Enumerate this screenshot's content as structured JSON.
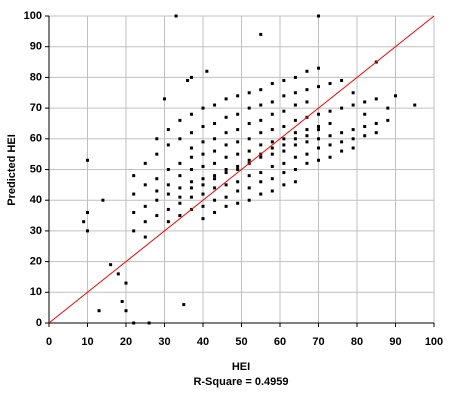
{
  "chart_data": {
    "type": "scatter",
    "x_label": "HEI",
    "y_label": "Predicted HEI",
    "annotation": "R-Square =  0.4959",
    "color": "#000000",
    "reference_line_color": "#ff0000",
    "grid": true,
    "xlim": [
      0,
      100
    ],
    "ylim": [
      0,
      100
    ],
    "xticks": [
      0,
      10,
      20,
      30,
      40,
      50,
      60,
      70,
      80,
      90,
      100
    ],
    "yticks": [
      0,
      10,
      20,
      30,
      40,
      50,
      60,
      70,
      80,
      90,
      100
    ],
    "x": [
      33,
      70,
      10,
      9,
      10,
      14,
      16,
      18,
      20,
      19,
      20,
      22,
      26,
      13,
      35,
      36,
      37,
      41,
      55,
      90,
      95,
      85,
      30,
      10,
      22,
      22,
      22,
      22,
      25,
      25,
      25,
      25,
      25,
      28,
      28,
      28,
      28,
      28,
      28,
      31,
      31,
      31,
      31,
      31,
      31,
      31,
      34,
      34,
      34,
      34,
      34,
      34,
      34,
      34,
      37,
      37,
      37,
      37,
      37,
      37,
      37,
      37,
      37,
      40,
      40,
      40,
      40,
      40,
      40,
      40,
      40,
      40,
      40,
      43,
      43,
      43,
      43,
      43,
      43,
      43,
      43,
      43,
      43,
      46,
      46,
      46,
      46,
      46,
      46,
      46,
      46,
      46,
      46,
      49,
      49,
      49,
      49,
      49,
      49,
      49,
      49,
      49,
      49,
      52,
      52,
      52,
      52,
      52,
      52,
      52,
      52,
      52,
      52,
      55,
      55,
      55,
      55,
      55,
      55,
      55,
      55,
      55,
      55,
      58,
      58,
      58,
      58,
      58,
      58,
      58,
      58,
      58,
      58,
      61,
      61,
      61,
      61,
      61,
      61,
      61,
      61,
      61,
      61,
      64,
      64,
      64,
      64,
      64,
      64,
      64,
      64,
      64,
      64,
      67,
      67,
      67,
      67,
      67,
      67,
      67,
      67,
      67,
      70,
      70,
      70,
      70,
      70,
      70,
      70,
      70,
      73,
      73,
      73,
      73,
      73,
      73,
      76,
      76,
      76,
      76,
      76,
      79,
      79,
      79,
      79,
      79,
      82,
      82,
      82,
      82,
      85,
      85,
      85,
      88,
      88
    ],
    "values": [
      100,
      100,
      53,
      33,
      30,
      40,
      19,
      16,
      13,
      7,
      4,
      0,
      0,
      4,
      6,
      79,
      80,
      82,
      94,
      74,
      71,
      85,
      73,
      36,
      36,
      42,
      48,
      30,
      38,
      45,
      33,
      52,
      28,
      40,
      47,
      35,
      55,
      43,
      60,
      42,
      50,
      37,
      58,
      45,
      33,
      63,
      44,
      52,
      39,
      60,
      48,
      35,
      66,
      41,
      46,
      54,
      41,
      62,
      50,
      37,
      68,
      44,
      57,
      47,
      55,
      42,
      64,
      51,
      38,
      70,
      45,
      59,
      34,
      48,
      56,
      44,
      65,
      52,
      40,
      71,
      47,
      60,
      36,
      50,
      58,
      45,
      67,
      54,
      41,
      73,
      49,
      62,
      38,
      51,
      59,
      46,
      68,
      55,
      43,
      74,
      50,
      63,
      39,
      52,
      60,
      48,
      70,
      56,
      44,
      75,
      53,
      65,
      40,
      54,
      62,
      49,
      71,
      58,
      46,
      76,
      55,
      66,
      42,
      55,
      63,
      51,
      72,
      59,
      47,
      78,
      57,
      68,
      43,
      56,
      64,
      52,
      74,
      60,
      49,
      79,
      58,
      69,
      45,
      58,
      66,
      54,
      75,
      62,
      50,
      80,
      60,
      71,
      46,
      59,
      67,
      55,
      76,
      63,
      52,
      82,
      61,
      72,
      60,
      68,
      57,
      77,
      64,
      53,
      83,
      63,
      61,
      69,
      58,
      78,
      65,
      54,
      62,
      70,
      59,
      79,
      56,
      63,
      71,
      60,
      75,
      57,
      64,
      72,
      61,
      68,
      65,
      73,
      62,
      66,
      70
    ]
  }
}
